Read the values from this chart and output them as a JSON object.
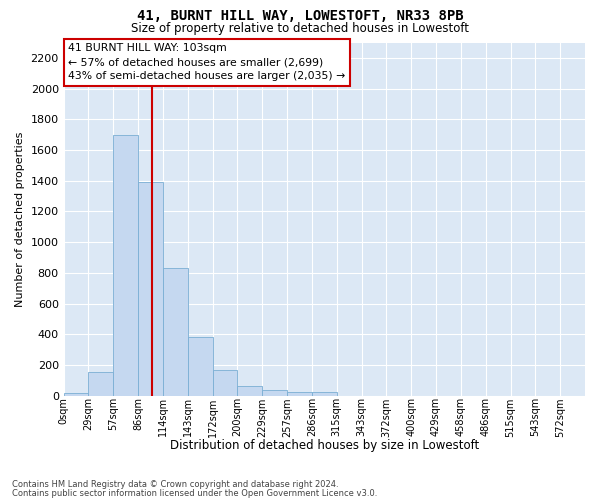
{
  "title": "41, BURNT HILL WAY, LOWESTOFT, NR33 8PB",
  "subtitle": "Size of property relative to detached houses in Lowestoft",
  "xlabel": "Distribution of detached houses by size in Lowestoft",
  "ylabel": "Number of detached properties",
  "bar_labels": [
    "0sqm",
    "29sqm",
    "57sqm",
    "86sqm",
    "114sqm",
    "143sqm",
    "172sqm",
    "200sqm",
    "229sqm",
    "257sqm",
    "286sqm",
    "315sqm",
    "343sqm",
    "372sqm",
    "400sqm",
    "429sqm",
    "458sqm",
    "486sqm",
    "515sqm",
    "543sqm",
    "572sqm"
  ],
  "bar_values": [
    20,
    155,
    1700,
    1390,
    835,
    385,
    165,
    65,
    35,
    25,
    28,
    0,
    0,
    0,
    0,
    0,
    0,
    0,
    0,
    0,
    0
  ],
  "bar_color": "#c5d8f0",
  "bar_edgecolor": "#7aaed4",
  "vline_x": 103,
  "vline_color": "#cc0000",
  "ylim_max": 2300,
  "yticks": [
    0,
    200,
    400,
    600,
    800,
    1000,
    1200,
    1400,
    1600,
    1800,
    2000,
    2200
  ],
  "annotation_line1": "41 BURNT HILL WAY: 103sqm",
  "annotation_line2": "← 57% of detached houses are smaller (2,699)",
  "annotation_line3": "43% of semi-detached houses are larger (2,035) →",
  "box_facecolor": "#ffffff",
  "box_edgecolor": "#cc0000",
  "grid_color": "#ffffff",
  "plot_bg": "#dce8f5",
  "footer1": "Contains HM Land Registry data © Crown copyright and database right 2024.",
  "footer2": "Contains public sector information licensed under the Open Government Licence v3.0.",
  "bin_width": 29
}
